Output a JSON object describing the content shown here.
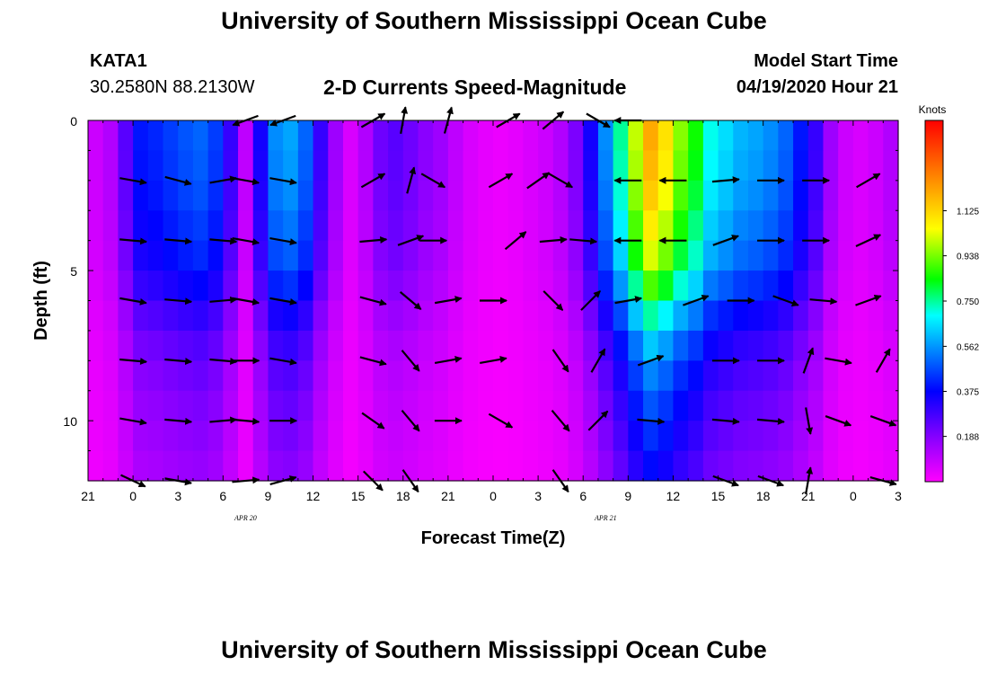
{
  "header": {
    "title": "University of Southern Mississippi Ocean Cube",
    "station": "KATA1",
    "coords": "30.2580N 88.2130W",
    "subtitle": "2-D Currents Speed-Magnitude",
    "model_start_label": "Model Start Time",
    "model_start_value": "04/19/2020 Hour 21"
  },
  "footer": {
    "title": "University of Southern Mississippi Ocean Cube"
  },
  "chart_data": {
    "type": "heatmap",
    "xlabel": "Forecast Time(Z)",
    "ylabel": "Depth (ft)",
    "x_ticks": [
      "21",
      "0",
      "3",
      "6",
      "9",
      "12",
      "15",
      "18",
      "21",
      "0",
      "3",
      "6",
      "9",
      "12",
      "15",
      "18",
      "21",
      "0",
      "3"
    ],
    "date_labels": [
      {
        "text": "APR 20",
        "hour_index": 10.5
      },
      {
        "text": "APR 21",
        "hour_index": 34.5
      }
    ],
    "y_ticks": [
      0,
      5,
      10
    ],
    "ylim": [
      0,
      12
    ],
    "x_hours": 54,
    "colorbar": {
      "title": "Knots",
      "ticks": [
        "1.125",
        "0.938",
        "0.750",
        "0.562",
        "0.375",
        "0.188"
      ],
      "range": [
        0,
        1.5
      ],
      "colors": [
        "#ff00ff",
        "#8a00ff",
        "#0000ff",
        "#0090ff",
        "#00ffff",
        "#00ff00",
        "#ffff00",
        "#ff8000",
        "#ff0000"
      ]
    },
    "speed_grid_depths_ft": [
      0,
      1,
      2,
      3,
      4,
      5,
      6,
      7,
      8,
      9,
      10,
      11
    ],
    "speed_profile_by_hour": [
      0.08,
      0.12,
      0.25,
      0.4,
      0.42,
      0.45,
      0.48,
      0.5,
      0.45,
      0.3,
      0.1,
      0.35,
      0.55,
      0.58,
      0.5,
      0.3,
      0.15,
      0.06,
      0.12,
      0.22,
      0.25,
      0.22,
      0.18,
      0.15,
      0.1,
      0.06,
      0.04,
      0.03,
      0.04,
      0.06,
      0.08,
      0.12,
      0.2,
      0.35,
      0.55,
      0.75,
      1.0,
      1.2,
      1.1,
      0.95,
      0.85,
      0.7,
      0.65,
      0.6,
      0.58,
      0.55,
      0.5,
      0.4,
      0.3,
      0.15,
      0.08,
      0.06,
      0.08,
      0.12
    ],
    "speed_depth_factor": [
      1.0,
      0.98,
      0.95,
      0.9,
      0.85,
      0.75,
      0.62,
      0.52,
      0.45,
      0.4,
      0.36,
      0.32
    ],
    "vectors": [
      {
        "hour": 10.5,
        "depth": 0,
        "angle": 200
      },
      {
        "hour": 13,
        "depth": 0,
        "angle": 200
      },
      {
        "hour": 19,
        "depth": 0,
        "angle": 30
      },
      {
        "hour": 21,
        "depth": 0,
        "angle": 80
      },
      {
        "hour": 24,
        "depth": 0,
        "angle": 75
      },
      {
        "hour": 28,
        "depth": 0,
        "angle": 30
      },
      {
        "hour": 31,
        "depth": 0,
        "angle": 40
      },
      {
        "hour": 34,
        "depth": 0,
        "angle": -30
      },
      {
        "hour": 36,
        "depth": 0,
        "angle": 180
      },
      {
        "hour": 3,
        "depth": 2,
        "angle": -10
      },
      {
        "hour": 6,
        "depth": 2,
        "angle": -15
      },
      {
        "hour": 9,
        "depth": 2,
        "angle": 10
      },
      {
        "hour": 10.5,
        "depth": 2,
        "angle": -10
      },
      {
        "hour": 13,
        "depth": 2,
        "angle": -10
      },
      {
        "hour": 19,
        "depth": 2,
        "angle": 30
      },
      {
        "hour": 21.5,
        "depth": 2,
        "angle": 75
      },
      {
        "hour": 23,
        "depth": 2,
        "angle": -30
      },
      {
        "hour": 27.5,
        "depth": 2,
        "angle": 30
      },
      {
        "hour": 30,
        "depth": 2,
        "angle": 35
      },
      {
        "hour": 31.5,
        "depth": 2,
        "angle": -30
      },
      {
        "hour": 36,
        "depth": 2,
        "angle": 180
      },
      {
        "hour": 39,
        "depth": 2,
        "angle": 180
      },
      {
        "hour": 42.5,
        "depth": 2,
        "angle": 5
      },
      {
        "hour": 45.5,
        "depth": 2,
        "angle": 0
      },
      {
        "hour": 48.5,
        "depth": 2,
        "angle": 0
      },
      {
        "hour": 52,
        "depth": 2,
        "angle": 30
      },
      {
        "hour": 3,
        "depth": 4,
        "angle": -5
      },
      {
        "hour": 6,
        "depth": 4,
        "angle": -5
      },
      {
        "hour": 9,
        "depth": 4,
        "angle": -5
      },
      {
        "hour": 10.5,
        "depth": 4,
        "angle": -10
      },
      {
        "hour": 13,
        "depth": 4,
        "angle": -10
      },
      {
        "hour": 19,
        "depth": 4,
        "angle": 5
      },
      {
        "hour": 21.5,
        "depth": 4,
        "angle": 20
      },
      {
        "hour": 23,
        "depth": 4,
        "angle": 0
      },
      {
        "hour": 28.5,
        "depth": 4,
        "angle": 40
      },
      {
        "hour": 31,
        "depth": 4,
        "angle": 5
      },
      {
        "hour": 33,
        "depth": 4,
        "angle": -5
      },
      {
        "hour": 36,
        "depth": 4,
        "angle": 180
      },
      {
        "hour": 39,
        "depth": 4,
        "angle": 180
      },
      {
        "hour": 42.5,
        "depth": 4,
        "angle": 20
      },
      {
        "hour": 45.5,
        "depth": 4,
        "angle": 0
      },
      {
        "hour": 48.5,
        "depth": 4,
        "angle": 0
      },
      {
        "hour": 52,
        "depth": 4,
        "angle": 25
      },
      {
        "hour": 3,
        "depth": 6,
        "angle": -10
      },
      {
        "hour": 6,
        "depth": 6,
        "angle": -5
      },
      {
        "hour": 9,
        "depth": 6,
        "angle": 5
      },
      {
        "hour": 10.5,
        "depth": 6,
        "angle": -10
      },
      {
        "hour": 13,
        "depth": 6,
        "angle": -10
      },
      {
        "hour": 19,
        "depth": 6,
        "angle": -15
      },
      {
        "hour": 21.5,
        "depth": 6,
        "angle": -40
      },
      {
        "hour": 24,
        "depth": 6,
        "angle": 10
      },
      {
        "hour": 27,
        "depth": 6,
        "angle": 0
      },
      {
        "hour": 31,
        "depth": 6,
        "angle": -45
      },
      {
        "hour": 33.5,
        "depth": 6,
        "angle": 45
      },
      {
        "hour": 36,
        "depth": 6,
        "angle": 10
      },
      {
        "hour": 40.5,
        "depth": 6,
        "angle": 20
      },
      {
        "hour": 43.5,
        "depth": 6,
        "angle": 0
      },
      {
        "hour": 46.5,
        "depth": 6,
        "angle": -20
      },
      {
        "hour": 49,
        "depth": 6,
        "angle": -5
      },
      {
        "hour": 52,
        "depth": 6,
        "angle": 20
      },
      {
        "hour": 3,
        "depth": 8,
        "angle": -5
      },
      {
        "hour": 6,
        "depth": 8,
        "angle": -5
      },
      {
        "hour": 9,
        "depth": 8,
        "angle": -5
      },
      {
        "hour": 10.5,
        "depth": 8,
        "angle": 0
      },
      {
        "hour": 13,
        "depth": 8,
        "angle": -10
      },
      {
        "hour": 19,
        "depth": 8,
        "angle": -15
      },
      {
        "hour": 21.5,
        "depth": 8,
        "angle": -50
      },
      {
        "hour": 24,
        "depth": 8,
        "angle": 10
      },
      {
        "hour": 27,
        "depth": 8,
        "angle": 10
      },
      {
        "hour": 31.5,
        "depth": 8,
        "angle": -55
      },
      {
        "hour": 34,
        "depth": 8,
        "angle": 60
      },
      {
        "hour": 37.5,
        "depth": 8,
        "angle": 20
      },
      {
        "hour": 42.5,
        "depth": 8,
        "angle": 0
      },
      {
        "hour": 45.5,
        "depth": 8,
        "angle": 0
      },
      {
        "hour": 48,
        "depth": 8,
        "angle": 70
      },
      {
        "hour": 50,
        "depth": 8,
        "angle": -10
      },
      {
        "hour": 53,
        "depth": 8,
        "angle": 60
      },
      {
        "hour": 3,
        "depth": 10,
        "angle": -10
      },
      {
        "hour": 6,
        "depth": 10,
        "angle": -5
      },
      {
        "hour": 9,
        "depth": 10,
        "angle": 5
      },
      {
        "hour": 10.5,
        "depth": 10,
        "angle": -5
      },
      {
        "hour": 13,
        "depth": 10,
        "angle": 0
      },
      {
        "hour": 19,
        "depth": 10,
        "angle": -35
      },
      {
        "hour": 21.5,
        "depth": 10,
        "angle": -50
      },
      {
        "hour": 24,
        "depth": 10,
        "angle": 0
      },
      {
        "hour": 27.5,
        "depth": 10,
        "angle": -30
      },
      {
        "hour": 31.5,
        "depth": 10,
        "angle": -50
      },
      {
        "hour": 34,
        "depth": 10,
        "angle": 45
      },
      {
        "hour": 37.5,
        "depth": 10,
        "angle": -5
      },
      {
        "hour": 42.5,
        "depth": 10,
        "angle": -5
      },
      {
        "hour": 45.5,
        "depth": 10,
        "angle": -5
      },
      {
        "hour": 48,
        "depth": 10,
        "angle": -80
      },
      {
        "hour": 50,
        "depth": 10,
        "angle": -20
      },
      {
        "hour": 53,
        "depth": 10,
        "angle": -20
      },
      {
        "hour": 3,
        "depth": 12,
        "angle": -25
      },
      {
        "hour": 6,
        "depth": 12,
        "angle": -10
      },
      {
        "hour": 10.5,
        "depth": 12,
        "angle": 5
      },
      {
        "hour": 13,
        "depth": 12,
        "angle": 15
      },
      {
        "hour": 19,
        "depth": 12,
        "angle": -45
      },
      {
        "hour": 21.5,
        "depth": 12,
        "angle": -55
      },
      {
        "hour": 31.5,
        "depth": 12,
        "angle": -55
      },
      {
        "hour": 42.5,
        "depth": 12,
        "angle": -20
      },
      {
        "hour": 45.5,
        "depth": 12,
        "angle": -20
      },
      {
        "hour": 48,
        "depth": 12,
        "angle": 80
      },
      {
        "hour": 53,
        "depth": 12,
        "angle": -15
      }
    ]
  }
}
